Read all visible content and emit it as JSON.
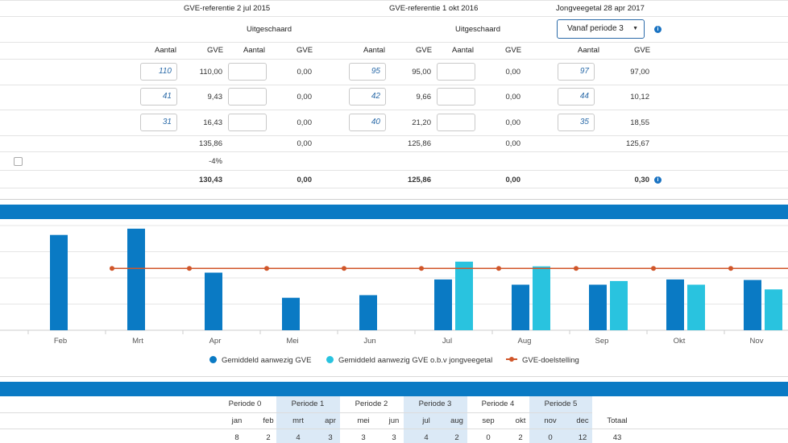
{
  "gve": {
    "headers": {
      "ref2015": "GVE-referentie 2 jul 2015",
      "ref2016": "GVE-referentie 1 okt 2016",
      "jongvee": "Jongveegetal 28 apr 2017",
      "uitgeschaard1": "Uitgeschaard",
      "uitgeschaard2": "Uitgeschaard"
    },
    "period_select": "Vanaf periode 3",
    "col_labels": {
      "aantal": "Aantal",
      "gve": "GVE"
    },
    "rows": [
      {
        "a1": "110",
        "g1": "110,00",
        "g1u": "0,00",
        "a2": "95",
        "g2": "95,00",
        "g2u": "0,00",
        "a3": "97",
        "g3": "97,00"
      },
      {
        "a1": "41",
        "g1": "9,43",
        "g1u": "0,00",
        "a2": "42",
        "g2": "9,66",
        "g2u": "0,00",
        "a3": "44",
        "g3": "10,12"
      },
      {
        "a1": "31",
        "g1": "16,43",
        "g1u": "0,00",
        "a2": "40",
        "g2": "21,20",
        "g2u": "0,00",
        "a3": "35",
        "g3": "18,55"
      }
    ],
    "subtotal": {
      "g1": "135,86",
      "g1u": "0,00",
      "g2": "125,86",
      "g2u": "0,00",
      "g3": "125,67"
    },
    "reduction": "-4%",
    "total": {
      "g1": "130,43",
      "g1u": "0,00",
      "g2": "125,86",
      "g2u": "0,00",
      "g3": "0,30"
    }
  },
  "chart_data": {
    "type": "bar",
    "categories": [
      "Feb",
      "Mrt",
      "Apr",
      "Mei",
      "Jun",
      "Jul",
      "Aug",
      "Sep",
      "Okt",
      "Nov"
    ],
    "series": [
      {
        "name": "Gemiddeld aanwezig GVE",
        "color": "#0a7ac4",
        "values": [
          182,
          194,
          110,
          62,
          67,
          97,
          87,
          87,
          97,
          96
        ]
      },
      {
        "name": "Gemiddeld aanwezig GVE o.b.v jongveegetal",
        "color": "#29c3df",
        "values": [
          null,
          null,
          null,
          null,
          null,
          131,
          122,
          94,
          87,
          78
        ]
      },
      {
        "name": "GVE-doelstelling",
        "color": "#d0562a",
        "type": "line",
        "values": [
          null,
          118,
          118,
          118,
          118,
          118,
          118,
          118,
          118,
          118
        ]
      }
    ],
    "ylim": [
      0,
      200
    ],
    "grid": true,
    "legend_position": "bottom"
  },
  "periods": {
    "names": [
      "Periode 0",
      "Periode 1",
      "Periode 2",
      "Periode 3",
      "Periode 4",
      "Periode 5"
    ],
    "months": [
      "jan",
      "feb",
      "mrt",
      "apr",
      "mei",
      "jun",
      "jul",
      "aug",
      "sep",
      "okt",
      "nov",
      "dec"
    ],
    "total_label": "Totaal",
    "values": [
      "8",
      "2",
      "4",
      "3",
      "3",
      "3",
      "4",
      "2",
      "0",
      "2",
      "0",
      "12"
    ],
    "total": "43"
  },
  "colors": {
    "band": "#0a7ac4",
    "bar_dark": "#0a7ac4",
    "bar_light": "#29c3df",
    "target_line": "#d0562a",
    "period_shade": "#dbe9f6"
  }
}
